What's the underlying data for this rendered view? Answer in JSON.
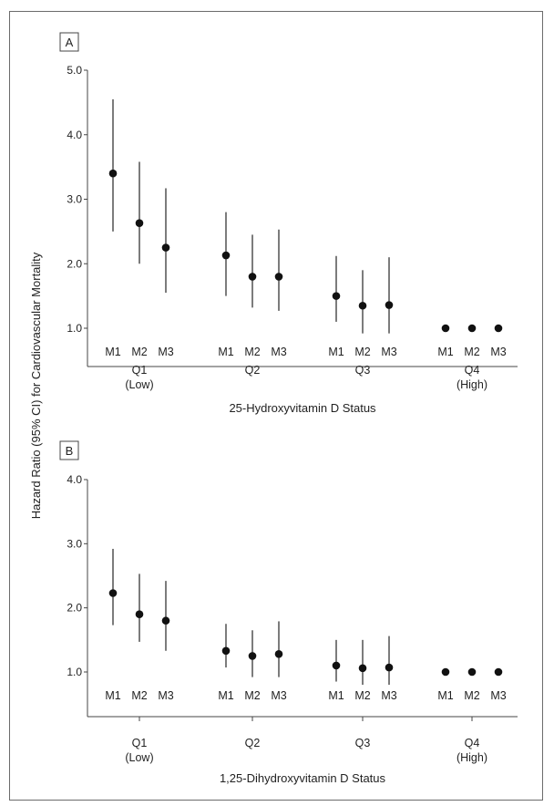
{
  "figure": {
    "ylabel": "Hazard Ratio (95% CI) for Cardiovascular Mortality",
    "colors": {
      "marker": "#111111",
      "axis": "#444444",
      "frame": "#6b6b6b"
    }
  },
  "chart_data": [
    {
      "type": "scatter",
      "panel_label": "A",
      "xlabel": "25-Hydroxyvitamin D Status",
      "ylabel": "Hazard Ratio (95% CI) for Cardiovascular Mortality",
      "ylim": [
        1.0,
        5.0
      ],
      "yticks": [
        "1.0",
        "2.0",
        "3.0",
        "4.0",
        "5.0"
      ],
      "groups": [
        {
          "label": "Q1",
          "sublabel": "(Low)",
          "models": [
            {
              "model": "M1",
              "hr": 3.4,
              "lower": 2.5,
              "upper": 4.55
            },
            {
              "model": "M2",
              "hr": 2.63,
              "lower": 2.0,
              "upper": 3.58
            },
            {
              "model": "M3",
              "hr": 2.25,
              "lower": 1.55,
              "upper": 3.17
            }
          ]
        },
        {
          "label": "Q2",
          "sublabel": "",
          "models": [
            {
              "model": "M1",
              "hr": 2.13,
              "lower": 1.5,
              "upper": 2.8
            },
            {
              "model": "M2",
              "hr": 1.8,
              "lower": 1.32,
              "upper": 2.45
            },
            {
              "model": "M3",
              "hr": 1.8,
              "lower": 1.27,
              "upper": 2.53
            }
          ]
        },
        {
          "label": "Q3",
          "sublabel": "",
          "models": [
            {
              "model": "M1",
              "hr": 1.5,
              "lower": 1.1,
              "upper": 2.12
            },
            {
              "model": "M2",
              "hr": 1.35,
              "lower": 0.92,
              "upper": 1.9
            },
            {
              "model": "M3",
              "hr": 1.36,
              "lower": 0.92,
              "upper": 2.1
            }
          ]
        },
        {
          "label": "Q4",
          "sublabel": "(High)",
          "models": [
            {
              "model": "M1",
              "hr": 1.0
            },
            {
              "model": "M2",
              "hr": 1.0
            },
            {
              "model": "M3",
              "hr": 1.0
            }
          ]
        }
      ]
    },
    {
      "type": "scatter",
      "panel_label": "B",
      "xlabel": "1,25-Dihydroxyvitamin D Status",
      "ylabel": "Hazard Ratio (95% CI) for Cardiovascular Mortality",
      "ylim": [
        1.0,
        4.0
      ],
      "yticks": [
        "1.0",
        "2.0",
        "3.0",
        "4.0"
      ],
      "groups": [
        {
          "label": "Q1",
          "sublabel": "(Low)",
          "models": [
            {
              "model": "M1",
              "hr": 2.23,
              "lower": 1.73,
              "upper": 2.92
            },
            {
              "model": "M2",
              "hr": 1.9,
              "lower": 1.47,
              "upper": 2.53
            },
            {
              "model": "M3",
              "hr": 1.8,
              "lower": 1.33,
              "upper": 2.42
            }
          ]
        },
        {
          "label": "Q2",
          "sublabel": "",
          "models": [
            {
              "model": "M1",
              "hr": 1.33,
              "lower": 1.07,
              "upper": 1.75
            },
            {
              "model": "M2",
              "hr": 1.25,
              "lower": 0.92,
              "upper": 1.65
            },
            {
              "model": "M3",
              "hr": 1.28,
              "lower": 0.92,
              "upper": 1.79
            }
          ]
        },
        {
          "label": "Q3",
          "sublabel": "",
          "models": [
            {
              "model": "M1",
              "hr": 1.1,
              "lower": 0.85,
              "upper": 1.5
            },
            {
              "model": "M2",
              "hr": 1.06,
              "lower": 0.8,
              "upper": 1.5
            },
            {
              "model": "M3",
              "hr": 1.07,
              "lower": 0.8,
              "upper": 1.56
            }
          ]
        },
        {
          "label": "Q4",
          "sublabel": "(High)",
          "models": [
            {
              "model": "M1",
              "hr": 1.0
            },
            {
              "model": "M2",
              "hr": 1.0
            },
            {
              "model": "M3",
              "hr": 1.0
            }
          ]
        }
      ]
    }
  ]
}
